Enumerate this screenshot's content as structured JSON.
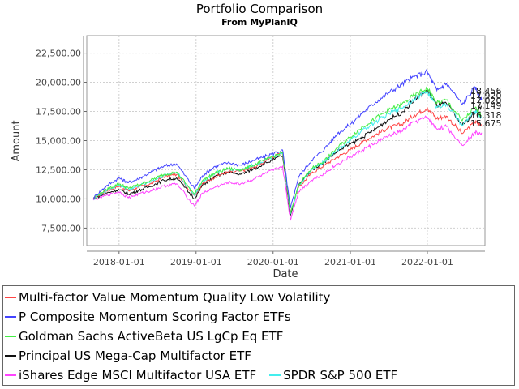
{
  "chart_data": {
    "type": "line",
    "title": "Portfolio Comparison",
    "subtitle": "From MyPlanIQ",
    "xlabel": "Date",
    "ylabel": "Amount",
    "x_ticks": [
      "2018-01-01",
      "2019-01-01",
      "2020-01-01",
      "2021-01-01",
      "2022-01-01"
    ],
    "y_ticks": [
      "7,500.00",
      "10,000.00",
      "12,500.00",
      "15,000.00",
      "17,500.00",
      "20,000.00",
      "22,500.00"
    ],
    "ylim": [
      6000,
      24000
    ],
    "xlim": [
      "2017-08-01",
      "2022-10-01"
    ],
    "grid": true,
    "legend_position": "bottom",
    "x": [
      "2017-09-01",
      "2017-11-01",
      "2018-01-01",
      "2018-02-15",
      "2018-04-01",
      "2018-06-01",
      "2018-08-01",
      "2018-10-01",
      "2018-12-24",
      "2019-02-01",
      "2019-04-01",
      "2019-06-01",
      "2019-08-01",
      "2019-10-01",
      "2019-12-01",
      "2020-02-15",
      "2020-03-23",
      "2020-05-01",
      "2020-07-01",
      "2020-09-01",
      "2020-11-01",
      "2021-01-01",
      "2021-03-01",
      "2021-05-01",
      "2021-07-01",
      "2021-09-01",
      "2021-11-01",
      "2022-01-01",
      "2022-02-15",
      "2022-04-01",
      "2022-06-15",
      "2022-08-15",
      "2022-09-15"
    ],
    "series": [
      {
        "name": "Multi-factor Value Momentum Quality Low Volatility",
        "color": "#ff4444",
        "values": [
          10000,
          10700,
          11100,
          10700,
          11000,
          11300,
          11900,
          12100,
          10300,
          11300,
          11900,
          12300,
          12400,
          12700,
          13300,
          14000,
          8800,
          11000,
          12200,
          12900,
          13600,
          14200,
          14900,
          15500,
          16100,
          16400,
          17200,
          17800,
          16900,
          17100,
          15600,
          16600,
          16318
        ]
      },
      {
        "name": "P Composite Momentum Scoring Factor ETFs",
        "color": "#4444ff",
        "values": [
          10100,
          11100,
          11800,
          11400,
          11700,
          12300,
          12800,
          13000,
          10900,
          12000,
          12800,
          13100,
          12900,
          13300,
          13700,
          14200,
          9200,
          11900,
          13300,
          14300,
          15600,
          16400,
          17400,
          18300,
          19100,
          19800,
          20500,
          20900,
          19300,
          19900,
          18100,
          19600,
          18456
        ]
      },
      {
        "name": "Goldman Sachs ActiveBeta US LgCp Eq ETF",
        "color": "#44ee44",
        "values": [
          10100,
          10800,
          11300,
          10900,
          11200,
          11600,
          12100,
          12300,
          10400,
          11600,
          12200,
          12600,
          12500,
          12900,
          13400,
          14000,
          8800,
          11200,
          12600,
          13300,
          14400,
          15300,
          16200,
          16900,
          17600,
          18100,
          18900,
          19500,
          18200,
          18500,
          16700,
          17800,
          17149
        ]
      },
      {
        "name": "Principal US Mega-Cap Multifactor ETF",
        "color": "#111111",
        "values": [
          10000,
          10500,
          10800,
          10400,
          10700,
          11100,
          11600,
          11800,
          10000,
          11200,
          11900,
          12300,
          12100,
          12600,
          13100,
          13700,
          8600,
          11200,
          12500,
          13200,
          14100,
          14700,
          15300,
          16000,
          16800,
          17400,
          18500,
          19300,
          18000,
          18200,
          16300,
          17400,
          17920
        ]
      },
      {
        "name": "iShares Edge MSCI Multifactor USA ETF",
        "color": "#ff44ff",
        "values": [
          9900,
          10300,
          10600,
          10100,
          10400,
          10700,
          11100,
          11300,
          9400,
          10500,
          11000,
          11400,
          11300,
          11700,
          12200,
          12800,
          8200,
          10600,
          11600,
          12200,
          13000,
          13600,
          14200,
          14800,
          15400,
          15800,
          16600,
          17000,
          16000,
          16200,
          14600,
          15700,
          15675
        ]
      },
      {
        "name": "SPDR S&P 500 ETF",
        "color": "#44eeee",
        "values": [
          10000,
          10700,
          11200,
          10800,
          11100,
          11500,
          12000,
          12300,
          10300,
          11500,
          12200,
          12600,
          12500,
          12900,
          13400,
          14000,
          8700,
          11100,
          12500,
          13200,
          14200,
          15000,
          15900,
          16600,
          17300,
          17800,
          18600,
          19200,
          17900,
          18100,
          16300,
          17500,
          17020
        ]
      }
    ],
    "end_labels": [
      "18,456",
      "17,920",
      "17,020",
      "17,149",
      "16,318",
      "15,675"
    ]
  }
}
